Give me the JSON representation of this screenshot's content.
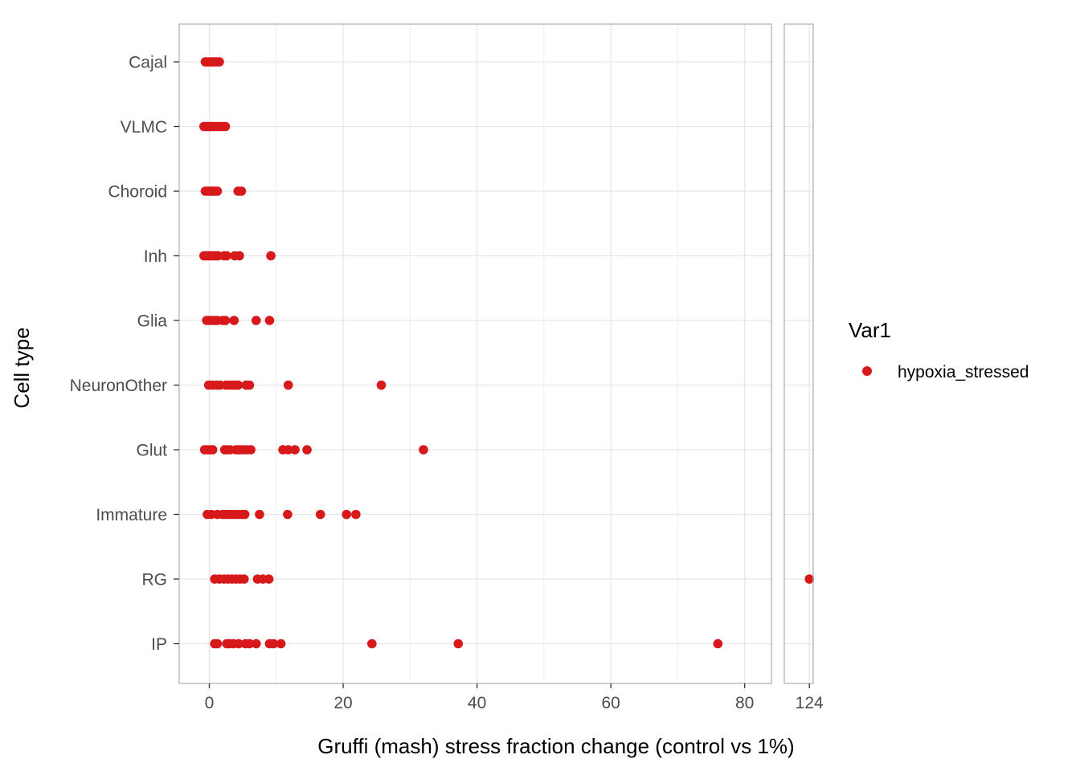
{
  "chart_data": {
    "type": "scatter",
    "xlabel": "Gruffi (mash) stress fraction change (control vs 1%)",
    "ylabel": "Cell type",
    "colors": {
      "point": "#d7191c",
      "grid": "#e6e6e6",
      "panel_border": "#b3b3b3"
    },
    "grid": true,
    "legend": {
      "title": "Var1",
      "position": "right",
      "entries": [
        "hypoxia_stressed"
      ]
    },
    "categories": [
      "Cajal",
      "VLMC",
      "Choroid",
      "Inh",
      "Glia",
      "NeuronOther",
      "Glut",
      "Immature",
      "RG",
      "IP"
    ],
    "panels": [
      {
        "xlim": [
          -4.5,
          84
        ],
        "xticks": [
          0,
          20,
          40,
          60,
          80
        ],
        "xtick_labels": [
          "0",
          "20",
          "40",
          "60",
          "80"
        ]
      },
      {
        "xlim": [
          120.1,
          124.6
        ],
        "xticks": [
          124
        ],
        "xtick_labels": [
          "124"
        ]
      }
    ],
    "series": [
      {
        "name": "hypoxia_stressed",
        "points": [
          {
            "y": "Cajal",
            "x": [
              -0.6,
              -0.3,
              0.0,
              0.3,
              0.6,
              0.9,
              1.2,
              1.5
            ]
          },
          {
            "y": "VLMC",
            "x": [
              -0.8,
              -0.5,
              -0.2,
              0.1,
              0.4,
              0.8,
              1.2,
              1.6,
              2.0,
              2.4
            ]
          },
          {
            "y": "Choroid",
            "x": [
              -0.6,
              -0.3,
              0.0,
              0.3,
              0.6,
              0.9,
              1.2,
              4.3,
              4.8
            ]
          },
          {
            "y": "Inh",
            "x": [
              -0.8,
              -0.5,
              -0.2,
              0.1,
              0.4,
              0.7,
              1.0,
              1.3,
              2.2,
              2.6,
              3.8,
              4.5,
              9.2
            ]
          },
          {
            "y": "Glia",
            "x": [
              -0.4,
              0.0,
              0.4,
              0.8,
              1.2,
              2.0,
              2.4,
              3.7,
              7.0,
              9.0
            ]
          },
          {
            "y": "NeuronOther",
            "x": [
              -0.1,
              0.5,
              1.1,
              1.6,
              2.5,
              3.0,
              3.5,
              3.9,
              4.3,
              5.5,
              6.0,
              11.8,
              25.7
            ]
          },
          {
            "y": "Glut",
            "x": [
              -0.7,
              -0.3,
              0.1,
              0.5,
              2.3,
              2.7,
              3.1,
              4.0,
              4.5,
              5.0,
              5.6,
              6.2,
              11.0,
              11.8,
              12.8,
              14.6,
              32.0
            ]
          },
          {
            "y": "Immature",
            "x": [
              -0.3,
              0.3,
              1.2,
              2.0,
              2.5,
              3.0,
              3.4,
              3.9,
              4.4,
              4.9,
              5.3,
              7.5,
              11.7,
              16.6,
              20.5,
              21.9
            ]
          },
          {
            "y": "RG",
            "x": [
              0.8,
              1.5,
              2.2,
              2.8,
              3.4,
              4.0,
              4.6,
              5.2,
              7.2,
              8.0,
              8.9,
              124.0
            ]
          },
          {
            "y": "IP",
            "x": [
              0.8,
              1.2,
              2.6,
              3.0,
              3.6,
              4.4,
              5.4,
              6.0,
              7.0,
              9.0,
              9.6,
              10.7,
              24.3,
              37.2,
              76.0
            ]
          }
        ]
      }
    ]
  }
}
